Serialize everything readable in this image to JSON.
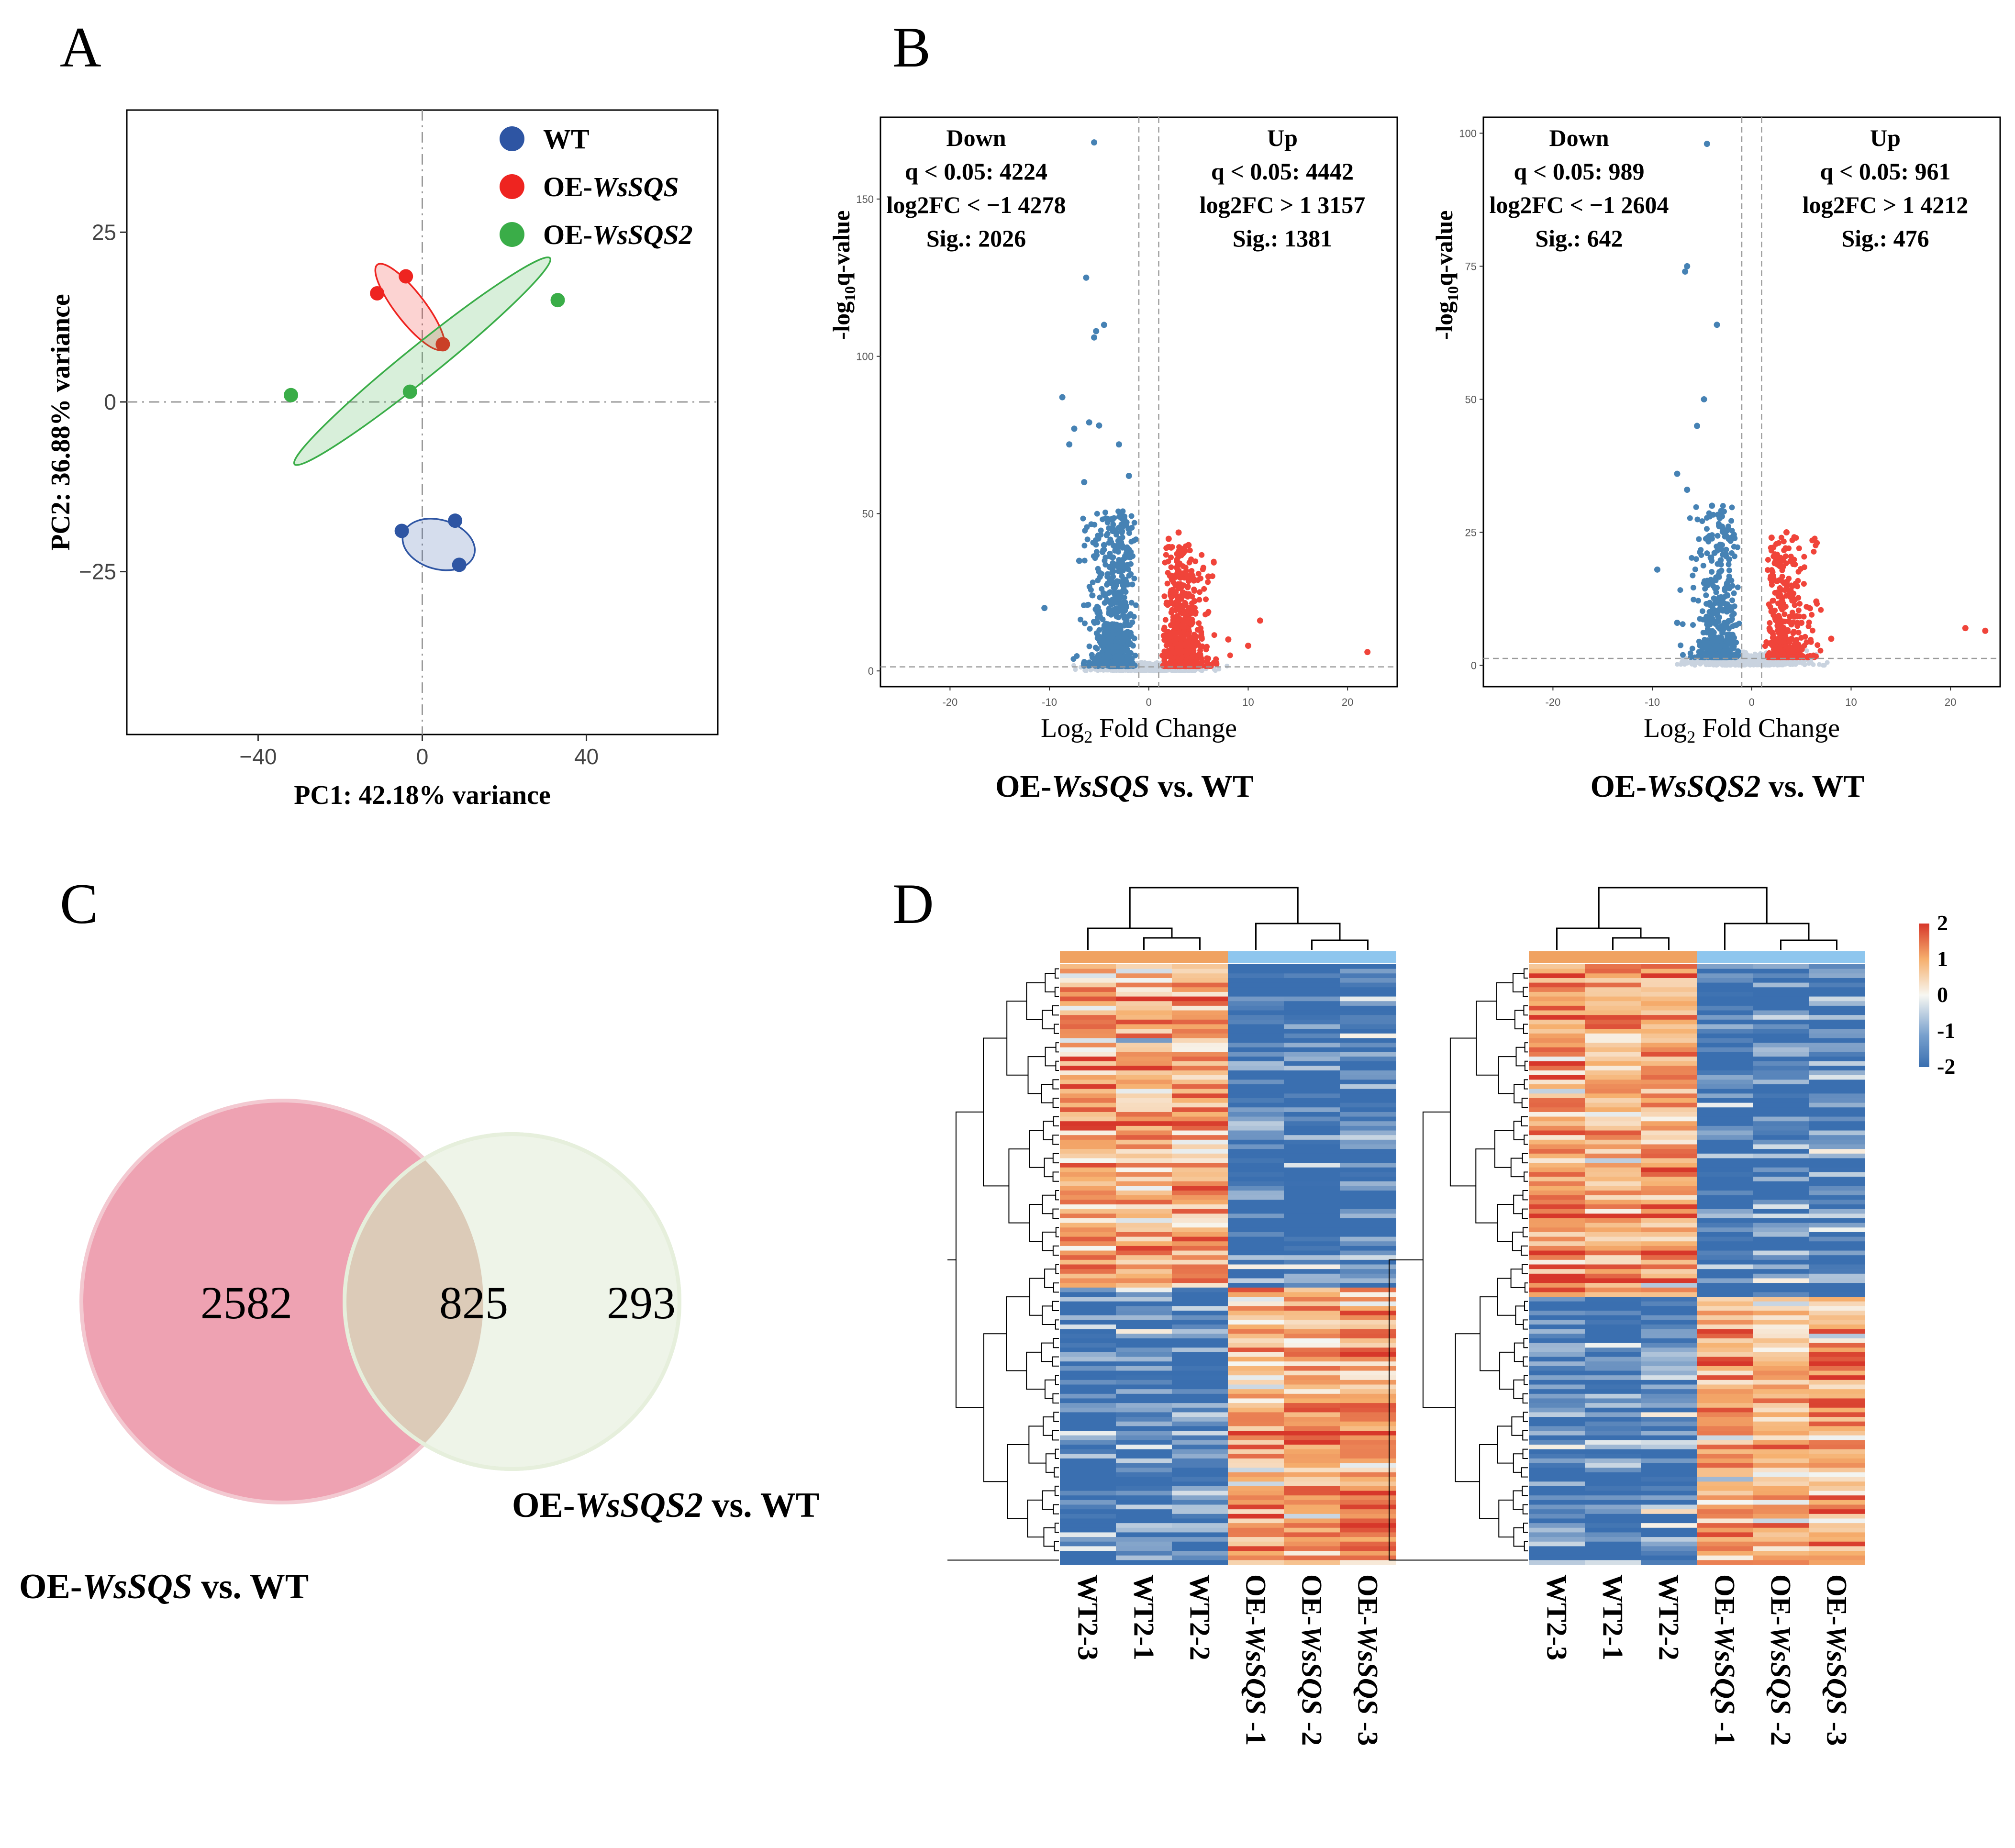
{
  "figure": {
    "panels": {
      "a": "A",
      "b": "B",
      "c": "C",
      "d": "D"
    }
  },
  "colors": {
    "wt": "#2e55a3",
    "oe_sqs": "#ee2420",
    "oe_sqs2": "#3aad48",
    "down": "#4682b4",
    "up": "#f0443a",
    "ns": "#c9d3df",
    "venn_left": "#eea2b2",
    "venn_right": "#eef4e8",
    "venn_overlap": "#dccbb8",
    "heat_low": "#3a6fb0",
    "heat_mid": "#f7f7f2",
    "heat_high": "#d7372a",
    "group_wt": "#f0a261",
    "group_oe": "#8ec6ee"
  },
  "chart_data": [
    {
      "id": "pca",
      "type": "scatter",
      "xlabel": "PC1: 42.18% variance",
      "ylabel": "PC2: 36.88% variance",
      "xlim": [
        -72,
        72
      ],
      "ylim": [
        -49,
        43
      ],
      "xticks": [
        -40,
        0,
        40
      ],
      "xtick_labels": [
        "−40",
        "0",
        "40"
      ],
      "yticks": [
        -25,
        0,
        25
      ],
      "ytick_labels": [
        "−25",
        "0",
        "25"
      ],
      "legend": [
        {
          "label": "WT",
          "italic": "",
          "color_key": "wt"
        },
        {
          "label": "OE-",
          "italic": "WsSQS",
          "color_key": "oe_sqs"
        },
        {
          "label": "OE-",
          "italic": "WsSQS2",
          "color_key": "oe_sqs2"
        }
      ],
      "series": [
        {
          "name": "WT",
          "color_key": "wt",
          "points": [
            [
              -5,
              -19
            ],
            [
              8,
              -17.5
            ],
            [
              9,
              -24
            ]
          ],
          "ellipse": {
            "cx": 4,
            "cy": -21,
            "rx": 9,
            "ry": 6,
            "angle_deg": -10
          }
        },
        {
          "name": "OE-WsSQS",
          "color_key": "oe_sqs",
          "points": [
            [
              -11,
              16
            ],
            [
              -4,
              18.5
            ],
            [
              5,
              8.5
            ]
          ],
          "ellipse": {
            "cx": -3,
            "cy": 14,
            "rx": 13,
            "ry": 3.6,
            "angle_deg": -38
          }
        },
        {
          "name": "OE-WsSQS2",
          "color_key": "oe_sqs2",
          "points": [
            [
              -32,
              1
            ],
            [
              -3,
              1.5
            ],
            [
              33,
              15
            ]
          ],
          "ellipse": {
            "cx": 0,
            "cy": 6,
            "rx": 40,
            "ry": 4,
            "angle_deg": 26
          }
        }
      ]
    },
    {
      "id": "volcano1",
      "type": "scatter",
      "title_prefix": "OE-",
      "title_italic": "WsSQS",
      "title_suffix": " vs. WT",
      "xlabel_prefix": "Log",
      "xlabel_sub": "2",
      "xlabel_suffix": " Fold Change",
      "ylabel_prefix": "-log",
      "ylabel_sub": "10",
      "ylabel_suffix": "q-value",
      "xlim": [
        -27,
        25
      ],
      "ylim": [
        -5,
        176
      ],
      "xticks": [
        -20,
        -10,
        0,
        10,
        20
      ],
      "xtick_labels": [
        "-20",
        "-10",
        "0",
        "10",
        "20"
      ],
      "yticks": [
        0,
        50,
        100,
        150
      ],
      "ytick_labels": [
        "0",
        "50",
        "100",
        "150"
      ],
      "thresholds": {
        "x": [
          -1,
          1
        ],
        "y": 1.3
      },
      "down_stats": [
        "Down",
        "q < 0.05: 4224",
        "log2FC < −1 4278",
        "Sig.:  2026"
      ],
      "up_stats": [
        "Up",
        "q < 0.05: 4442",
        "log2FC > 1 3157",
        "Sig.:  1381"
      ],
      "highlight_points": [
        [
          -5.5,
          168
        ],
        [
          -6.3,
          125
        ],
        [
          -5.3,
          108
        ],
        [
          -4.5,
          110
        ],
        [
          -5.5,
          106
        ],
        [
          -8.7,
          87
        ],
        [
          -7.5,
          77
        ],
        [
          -6,
          79
        ],
        [
          -5,
          78
        ],
        [
          -3,
          72
        ],
        [
          -8,
          72
        ],
        [
          -2,
          62
        ],
        [
          -6.5,
          60
        ],
        [
          -10.5,
          20
        ],
        [
          -7,
          35
        ],
        [
          -4.5,
          40
        ],
        [
          11.2,
          16
        ],
        [
          22,
          6
        ],
        [
          4,
          40
        ],
        [
          3,
          44
        ],
        [
          2,
          42
        ],
        [
          6,
          30
        ],
        [
          8,
          10
        ],
        [
          10,
          8
        ]
      ]
    },
    {
      "id": "volcano2",
      "type": "scatter",
      "title_prefix": "OE-",
      "title_italic": "WsSQS2",
      "title_suffix": " vs. WT",
      "xlabel_prefix": "Log",
      "xlabel_sub": "2",
      "xlabel_suffix": " Fold Change",
      "ylabel_prefix": "-log",
      "ylabel_sub": "10",
      "ylabel_suffix": "q-value",
      "xlim": [
        -27,
        25
      ],
      "ylim": [
        -4,
        103
      ],
      "xticks": [
        -20,
        -10,
        0,
        10,
        20
      ],
      "xtick_labels": [
        "-20",
        "-10",
        "0",
        "10",
        "20"
      ],
      "yticks": [
        0,
        25,
        50,
        75,
        100
      ],
      "ytick_labels": [
        "0",
        "25",
        "50",
        "75",
        "100"
      ],
      "thresholds": {
        "x": [
          -1,
          1
        ],
        "y": 1.3
      },
      "down_stats": [
        "Down",
        "q < 0.05: 989",
        "log2FC < −1 2604",
        "Sig.:  642"
      ],
      "up_stats": [
        "Up",
        "q < 0.05: 961",
        "log2FC > 1 4212",
        "Sig.:  476"
      ],
      "highlight_points": [
        [
          -4.5,
          98
        ],
        [
          -6.5,
          75
        ],
        [
          -6.7,
          74
        ],
        [
          -3.5,
          64
        ],
        [
          -4.8,
          50
        ],
        [
          -5.5,
          45
        ],
        [
          -7.5,
          36
        ],
        [
          -6.5,
          33
        ],
        [
          -4,
          30
        ],
        [
          -3,
          28
        ],
        [
          -9.5,
          18
        ],
        [
          -7.5,
          8
        ],
        [
          21.5,
          7
        ],
        [
          23.5,
          6.5
        ],
        [
          3.5,
          25
        ],
        [
          2,
          24
        ],
        [
          8,
          5
        ],
        [
          5,
          8
        ],
        [
          6.5,
          12
        ]
      ]
    },
    {
      "id": "venn",
      "type": "venn",
      "sets": [
        {
          "label_prefix": "OE-",
          "label_italic": "WsSQS",
          "label_suffix": " vs. WT",
          "only": 2582
        },
        {
          "label_prefix": "OE-",
          "label_italic": "WsSQS2",
          "label_suffix": " vs. WT",
          "only": 293
        }
      ],
      "overlap": 825,
      "labels": {
        "left_only": "2582",
        "overlap": "825",
        "right_only": "293"
      }
    },
    {
      "id": "heatmap",
      "type": "heatmap",
      "colorbar": {
        "min": -2,
        "max": 2,
        "ticks": [
          "2",
          "1",
          "0",
          "-1",
          "-2"
        ]
      },
      "maps": [
        {
          "columns": [
            {
              "prefix": "WT2-3",
              "italic": "",
              "suffix": ""
            },
            {
              "prefix": "WT2-1",
              "italic": "",
              "suffix": ""
            },
            {
              "prefix": "WT2-2",
              "italic": "",
              "suffix": ""
            },
            {
              "prefix": "OE-",
              "italic": "WsSQS",
              "suffix": " -1"
            },
            {
              "prefix": "OE-",
              "italic": "WsSQS",
              "suffix": " -2"
            },
            {
              "prefix": "OE-",
              "italic": "WsSQS",
              "suffix": " -3"
            }
          ],
          "column_groups": [
            "wt",
            "wt",
            "wt",
            "oe",
            "oe",
            "oe"
          ],
          "split_fraction": 0.54,
          "top_means": [
            1.0,
            0.9,
            1.1,
            -1.4,
            -1.5,
            -1.3
          ],
          "bottom_means": [
            -1.4,
            -1.1,
            -1.3,
            0.8,
            1.0,
            1.1
          ],
          "seed": 17
        },
        {
          "columns": [
            {
              "prefix": "WT2-3",
              "italic": "",
              "suffix": ""
            },
            {
              "prefix": "WT2-1",
              "italic": "",
              "suffix": ""
            },
            {
              "prefix": "WT2-2",
              "italic": "",
              "suffix": ""
            },
            {
              "prefix": "OE-",
              "italic": "WsSQS",
              "suffix": " -1"
            },
            {
              "prefix": "OE-",
              "italic": "WsSQS",
              "suffix": " -2"
            },
            {
              "prefix": "OE-",
              "italic": "WsSQS",
              "suffix": " -3"
            }
          ],
          "column_groups": [
            "wt",
            "wt",
            "wt",
            "oe",
            "oe",
            "oe"
          ],
          "split_fraction": 0.55,
          "top_means": [
            1.1,
            0.9,
            1.0,
            -1.5,
            -1.4,
            -1.2
          ],
          "bottom_means": [
            -1.3,
            -1.4,
            -1.2,
            1.0,
            0.9,
            1.0
          ],
          "seed": 41
        }
      ]
    }
  ]
}
